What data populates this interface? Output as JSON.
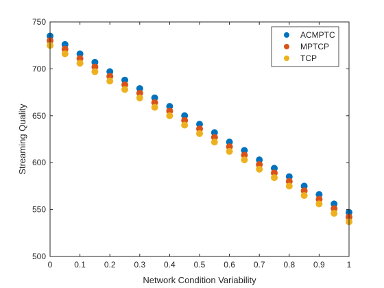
{
  "chart_data": {
    "type": "scatter",
    "title": "",
    "xlabel": "Network Condition Variability",
    "ylabel": "Streaming Quality",
    "xlim": [
      0,
      1
    ],
    "ylim": [
      500,
      750
    ],
    "xticks": [
      "0",
      "0.1",
      "0.2",
      "0.3",
      "0.4",
      "0.5",
      "0.6",
      "0.7",
      "0.8",
      "0.9",
      "1"
    ],
    "yticks": [
      "500",
      "550",
      "600",
      "650",
      "700",
      "750"
    ],
    "grid": false,
    "legend_position": "top-right",
    "series": [
      {
        "name": "ACMPTC",
        "color": "#0072BD",
        "x": [
          0.0,
          0.05,
          0.1,
          0.15,
          0.2,
          0.25,
          0.3,
          0.35,
          0.4,
          0.45,
          0.5,
          0.55,
          0.6,
          0.65,
          0.7,
          0.75,
          0.8,
          0.85,
          0.9,
          0.95,
          1.0
        ],
        "y": [
          735,
          726,
          716,
          707,
          697,
          688,
          679,
          669,
          660,
          650,
          641,
          632,
          622,
          613,
          603,
          594,
          585,
          575,
          566,
          556,
          547
        ]
      },
      {
        "name": "MPTCP",
        "color": "#D95319",
        "x": [
          0.0,
          0.05,
          0.1,
          0.15,
          0.2,
          0.25,
          0.3,
          0.35,
          0.4,
          0.45,
          0.5,
          0.55,
          0.6,
          0.65,
          0.7,
          0.75,
          0.8,
          0.85,
          0.9,
          0.95,
          1.0
        ],
        "y": [
          730,
          721,
          711,
          702,
          692,
          683,
          674,
          664,
          655,
          645,
          636,
          627,
          617,
          608,
          598,
          589,
          580,
          570,
          561,
          551,
          542
        ]
      },
      {
        "name": "TCP",
        "color": "#EDB120",
        "x": [
          0.0,
          0.05,
          0.1,
          0.15,
          0.2,
          0.25,
          0.3,
          0.35,
          0.4,
          0.45,
          0.5,
          0.55,
          0.6,
          0.65,
          0.7,
          0.75,
          0.8,
          0.85,
          0.9,
          0.95,
          1.0
        ],
        "y": [
          725,
          716,
          706,
          697,
          687,
          678,
          669,
          659,
          650,
          640,
          631,
          622,
          612,
          603,
          593,
          584,
          575,
          565,
          556,
          546,
          537
        ]
      }
    ]
  }
}
